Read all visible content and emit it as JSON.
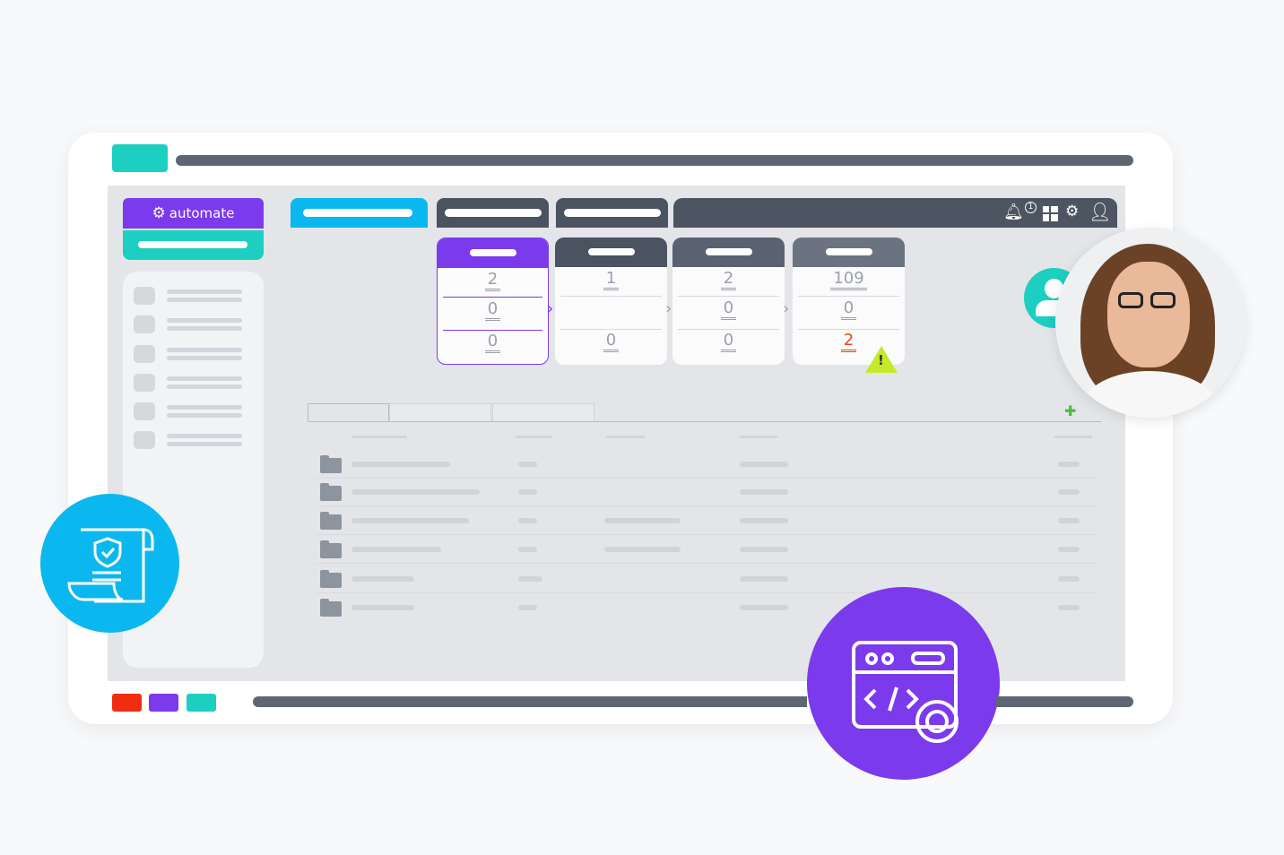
{
  "brand": {
    "name": "automate",
    "logo_icon": "gear-cycle-icon"
  },
  "toolbar": {
    "icons": [
      "bell-icon",
      "grid-icon",
      "gear-icon",
      "user-icon"
    ],
    "notification_count": "1"
  },
  "cards": [
    {
      "values": [
        "2",
        "0",
        "0"
      ],
      "active": true
    },
    {
      "values": [
        "1",
        "",
        "0"
      ]
    },
    {
      "values": [
        "2",
        "0",
        "0"
      ]
    },
    {
      "values": [
        "109",
        "0",
        "2"
      ],
      "alert": true
    }
  ],
  "colors": {
    "purple": "#7c3aed",
    "teal": "#1ccfc0",
    "cyan": "#0ab8ef",
    "dark": "#4b5563",
    "alert": "#e8470f",
    "warning": "#c6ea2b",
    "add": "#4cbb3a"
  },
  "decor": {
    "left_badge": "secure-document-icon",
    "right_badge": "code-settings-icon",
    "avatar": "user-icon",
    "photo": "user-photo"
  }
}
